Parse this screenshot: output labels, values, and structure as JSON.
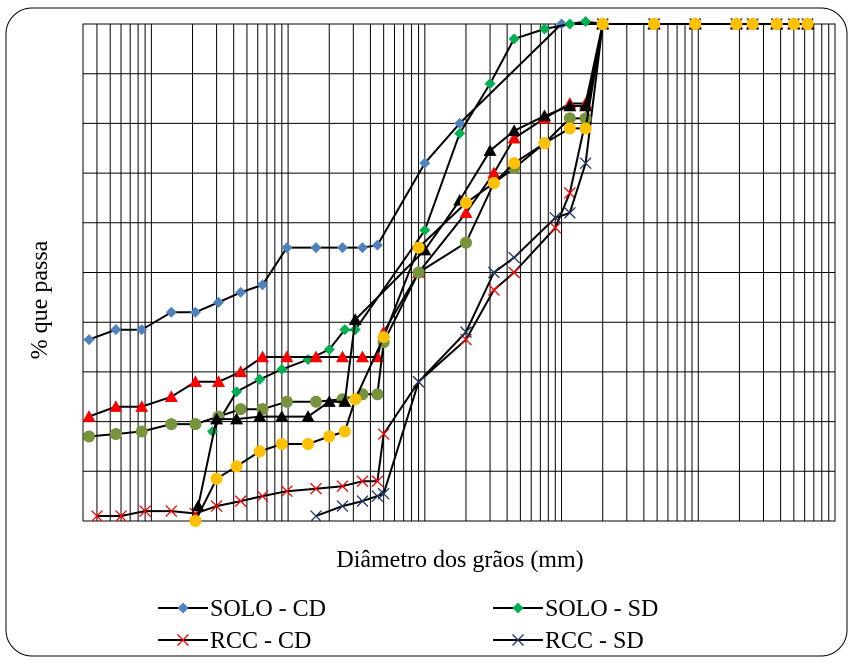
{
  "chart_data": {
    "type": "line",
    "title": "",
    "xlabel": "Diâmetro dos grãos (mm)",
    "ylabel": "% que passa",
    "x_scale": "log",
    "x_range_log10": [
      -3.5,
      2.0
    ],
    "ylim": [
      0,
      100
    ],
    "grid": true,
    "legend_position": "bottom",
    "series": [
      {
        "name": "SOLO - CD",
        "color": "#4f81bd",
        "marker": "diamond",
        "x": [
          0.00035,
          0.00055,
          0.00085,
          0.0014,
          0.0021,
          0.0031,
          0.0045,
          0.0065,
          0.0098,
          0.016,
          0.025,
          0.035,
          0.045,
          0.1,
          0.18,
          1,
          2,
          4.75,
          9.5,
          19,
          25,
          37.5,
          50,
          63
        ],
        "y": [
          36.5,
          38.5,
          38.5,
          42,
          42,
          44,
          46,
          47.5,
          55,
          55,
          55,
          55,
          55.5,
          72,
          80,
          100,
          100,
          100,
          100,
          100,
          100,
          100,
          100,
          100
        ]
      },
      {
        "name": "SOLO - SD",
        "color": "#00b050",
        "marker": "diamond",
        "x": [
          0.0028,
          0.0042,
          0.0062,
          0.009,
          0.014,
          0.02,
          0.026,
          0.031,
          0.1,
          0.18,
          0.3,
          0.45,
          0.75,
          1.15,
          1.5,
          2,
          4.75,
          9.5,
          19,
          25,
          37.5,
          50,
          63
        ],
        "y": [
          18,
          26,
          28.5,
          30.5,
          32.5,
          34.5,
          38.5,
          38.5,
          58.5,
          78,
          88,
          97,
          99,
          100,
          100.5,
          100,
          100,
          100,
          100,
          100,
          100,
          100,
          100
        ]
      },
      {
        "name": "RCC - CD",
        "color": "#ff0000",
        "marker": "x",
        "x": [
          0.0004,
          0.0006,
          0.0009,
          0.0014,
          0.0021,
          0.003,
          0.0045,
          0.0065,
          0.0098,
          0.016,
          0.025,
          0.035,
          0.045,
          0.05,
          0.09,
          0.2,
          0.32,
          0.45,
          0.9,
          1.15,
          1.5,
          2,
          4.75,
          9.5,
          19,
          25,
          37.5,
          50,
          63
        ],
        "y": [
          1,
          1,
          2,
          2,
          1.5,
          3,
          4,
          5,
          6,
          6.5,
          7,
          8,
          8,
          17.5,
          28,
          36.5,
          46.5,
          50,
          59,
          66,
          80.5,
          100,
          100,
          100,
          100,
          100,
          100,
          100,
          100
        ]
      },
      {
        "name": "RCC - SD",
        "color": "#1f3864",
        "marker": "x",
        "x": [
          0.016,
          0.025,
          0.035,
          0.045,
          0.05,
          0.09,
          0.2,
          0.32,
          0.45,
          0.9,
          1.15,
          1.5,
          2,
          4.75,
          9.5,
          19,
          25,
          37.5,
          50,
          63
        ],
        "y": [
          1,
          3,
          4,
          5,
          5.5,
          28,
          38,
          50,
          53,
          61,
          62,
          72,
          100,
          100,
          100,
          100,
          100,
          100,
          100,
          100
        ]
      },
      {
        "name": "",
        "color": "#ff0000",
        "marker": "triangle",
        "x": [
          0.00035,
          0.00055,
          0.00085,
          0.0014,
          0.0021,
          0.0031,
          0.0045,
          0.0065,
          0.0098,
          0.016,
          0.025,
          0.035,
          0.045,
          0.05,
          0.09,
          0.2,
          0.32,
          0.45,
          0.75,
          1.15,
          1.5,
          2,
          4.75,
          9.5,
          19,
          25,
          37.5,
          50,
          63
        ],
        "y": [
          21,
          23,
          23,
          25,
          28,
          28,
          30,
          33,
          33,
          33,
          33,
          33,
          33,
          38,
          50,
          62,
          70,
          77,
          81,
          84,
          84,
          100,
          100,
          100,
          100,
          100,
          100,
          100,
          100
        ]
      },
      {
        "name": "",
        "color": "#77933c",
        "marker": "circle",
        "x": [
          0.00035,
          0.00055,
          0.00085,
          0.0014,
          0.0021,
          0.0031,
          0.0045,
          0.0065,
          0.0098,
          0.016,
          0.025,
          0.035,
          0.045,
          0.05,
          0.09,
          0.2,
          0.32,
          0.45,
          0.75,
          1.15,
          1.5,
          2,
          4.75,
          9.5,
          19,
          25,
          37.5,
          50,
          63
        ],
        "y": [
          17,
          17.5,
          18,
          19.5,
          19.5,
          21,
          22.5,
          22.5,
          24,
          24,
          24.5,
          25.5,
          25.5,
          36,
          50,
          56,
          68,
          71,
          76,
          81,
          81,
          100,
          100,
          100,
          100,
          100,
          100,
          100,
          100
        ]
      },
      {
        "name": "",
        "color": "#000000",
        "marker": "triangle",
        "x": [
          0.0022,
          0.003,
          0.0042,
          0.0062,
          0.009,
          0.014,
          0.02,
          0.026,
          0.031,
          0.1,
          0.18,
          0.3,
          0.45,
          0.75,
          1.15,
          1.5,
          2,
          4.75,
          9.5,
          19,
          25,
          37.5,
          50,
          63
        ],
        "y": [
          3,
          20.5,
          20.5,
          21,
          21,
          21,
          24,
          24,
          40.5,
          54.5,
          64.5,
          74.5,
          78.5,
          81.5,
          83.5,
          83.5,
          100,
          100,
          100,
          100,
          100,
          100,
          100,
          100
        ]
      },
      {
        "name": "",
        "color": "#ffc000",
        "marker": "circle",
        "x": [
          0.0021,
          0.003,
          0.0042,
          0.0062,
          0.009,
          0.014,
          0.02,
          0.026,
          0.031,
          0.05,
          0.09,
          0.2,
          0.32,
          0.45,
          0.75,
          1.15,
          1.5,
          2,
          4.75,
          9.5,
          19,
          25,
          37.5,
          50,
          63
        ],
        "y": [
          0,
          8.5,
          11,
          14,
          15.5,
          15.5,
          17,
          18,
          24.5,
          37,
          55,
          64,
          68,
          72,
          76,
          79,
          79,
          100,
          100,
          100,
          100,
          100,
          100,
          100,
          100
        ]
      }
    ]
  }
}
